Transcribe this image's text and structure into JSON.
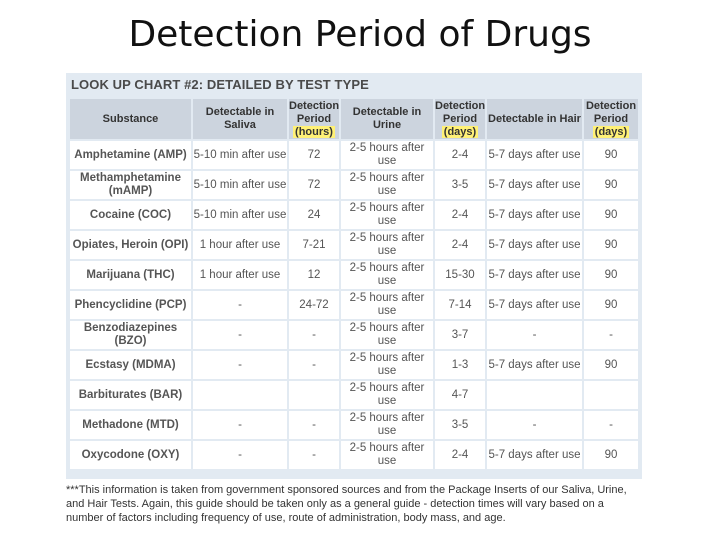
{
  "slide": {
    "title": "Detection Period of Drugs"
  },
  "chart": {
    "heading": "LOOK UP CHART #2: DETAILED BY TEST TYPE",
    "highlight_color": "#fff176",
    "columns": {
      "substance": "Substance",
      "saliva": "Detectable in Saliva",
      "saliva_period_top": "Detection Period",
      "saliva_period_unit": "(hours)",
      "urine": "Detectable in Urine",
      "urine_period_top": "Detection Period",
      "urine_period_unit": "(days)",
      "hair": "Detectable in Hair",
      "hair_period_top": "Detection Period",
      "hair_period_unit": "(days)"
    },
    "rows": [
      {
        "substance": "Amphetamine (AMP)",
        "saliva": "5-10 min after use",
        "saliva_period": "72",
        "urine": "2-5 hours after use",
        "urine_period": "2-4",
        "hair": "5-7 days after use",
        "hair_period": "90"
      },
      {
        "substance": "Methamphetamine (mAMP)",
        "saliva": "5-10 min after use",
        "saliva_period": "72",
        "urine": "2-5 hours after use",
        "urine_period": "3-5",
        "hair": "5-7 days after use",
        "hair_period": "90"
      },
      {
        "substance": "Cocaine (COC)",
        "saliva": "5-10 min after use",
        "saliva_period": "24",
        "urine": "2-5 hours after use",
        "urine_period": "2-4",
        "hair": "5-7 days after use",
        "hair_period": "90"
      },
      {
        "substance": "Opiates, Heroin (OPI)",
        "saliva": "1 hour after use",
        "saliva_period": "7-21",
        "urine": "2-5 hours after use",
        "urine_period": "2-4",
        "hair": "5-7 days after use",
        "hair_period": "90"
      },
      {
        "substance": "Marijuana (THC)",
        "saliva": "1 hour after use",
        "saliva_period": "12",
        "urine": "2-5 hours after use",
        "urine_period": "15-30",
        "hair": "5-7 days after use",
        "hair_period": "90"
      },
      {
        "substance": "Phencyclidine (PCP)",
        "saliva": "-",
        "saliva_period": "24-72",
        "urine": "2-5 hours after use",
        "urine_period": "7-14",
        "hair": "5-7 days after use",
        "hair_period": "90"
      },
      {
        "substance": "Benzodiazepines (BZO)",
        "saliva": "-",
        "saliva_period": "-",
        "urine": "2-5 hours after use",
        "urine_period": "3-7",
        "hair": "-",
        "hair_period": "-"
      },
      {
        "substance": "Ecstasy (MDMA)",
        "saliva": "-",
        "saliva_period": "-",
        "urine": "2-5 hours after use",
        "urine_period": "1-3",
        "hair": "5-7 days after use",
        "hair_period": "90"
      },
      {
        "substance": "Barbiturates (BAR)",
        "saliva": "",
        "saliva_period": "",
        "urine": "2-5 hours after use",
        "urine_period": "4-7",
        "hair": "",
        "hair_period": ""
      },
      {
        "substance": "Methadone (MTD)",
        "saliva": "-",
        "saliva_period": "-",
        "urine": "2-5 hours after use",
        "urine_period": "3-5",
        "hair": "-",
        "hair_period": "-"
      },
      {
        "substance": "Oxycodone (OXY)",
        "saliva": "-",
        "saliva_period": "-",
        "urine": "2-5 hours after use",
        "urine_period": "2-4",
        "hair": "5-7 days after use",
        "hair_period": "90"
      }
    ],
    "footnote": "***This information is taken from government sponsored sources and from the Package Inserts of our Saliva, Urine, and Hair Tests. Again, this guide should be taken only as a general guide - detection times will vary based on a number of factors including frequency of use, route of administration, body mass, and age."
  }
}
